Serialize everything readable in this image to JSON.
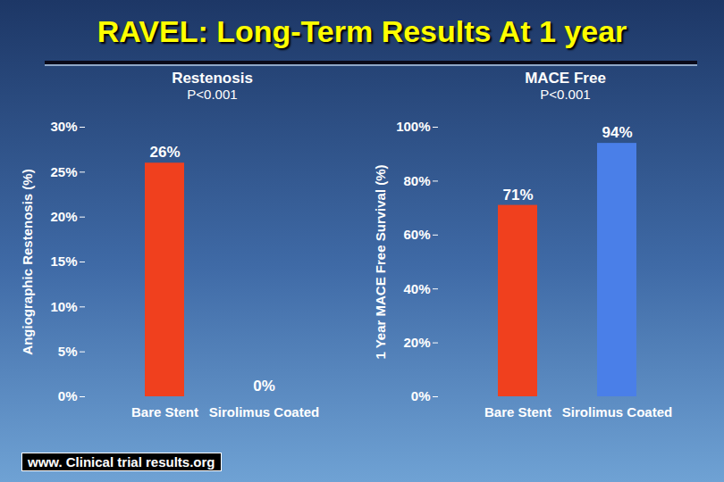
{
  "title": "RAVEL: Long-Term Results At 1 year",
  "source": "www. Clinical trial results.org",
  "chart_data": [
    {
      "type": "bar",
      "title": "Restenosis",
      "subtitle": "P<0.001",
      "y_label": "Angiographic Restenosis (%)",
      "categories": [
        "Bare Stent",
        "Sirolimus Coated"
      ],
      "values": [
        26,
        0
      ],
      "value_labels": [
        "26%",
        "0%"
      ],
      "colors": [
        "#f0401e",
        "#4a7fe8"
      ],
      "ylim": [
        0,
        30
      ],
      "yticks": [
        {
          "value": 0,
          "label": "0%"
        },
        {
          "value": 5,
          "label": "5%"
        },
        {
          "value": 10,
          "label": "10%"
        },
        {
          "value": 15,
          "label": "15%"
        },
        {
          "value": 20,
          "label": "20%"
        },
        {
          "value": 25,
          "label": "25%"
        },
        {
          "value": 30,
          "label": "30%"
        }
      ],
      "grid": false,
      "data_labels": true
    },
    {
      "type": "bar",
      "title": "MACE Free",
      "subtitle": "P<0.001",
      "y_label": "1 Year MACE Free Survival (%)",
      "categories": [
        "Bare Stent",
        "Sirolimus Coated"
      ],
      "values": [
        71,
        94
      ],
      "value_labels": [
        "71%",
        "94%"
      ],
      "colors": [
        "#f0401e",
        "#4a7fe8"
      ],
      "ylim": [
        0,
        100
      ],
      "yticks": [
        {
          "value": 0,
          "label": "0%"
        },
        {
          "value": 20,
          "label": "20%"
        },
        {
          "value": 40,
          "label": "40%"
        },
        {
          "value": 60,
          "label": "60%"
        },
        {
          "value": 80,
          "label": "80%"
        },
        {
          "value": 100,
          "label": "100%"
        }
      ],
      "grid": false,
      "data_labels": true
    }
  ]
}
